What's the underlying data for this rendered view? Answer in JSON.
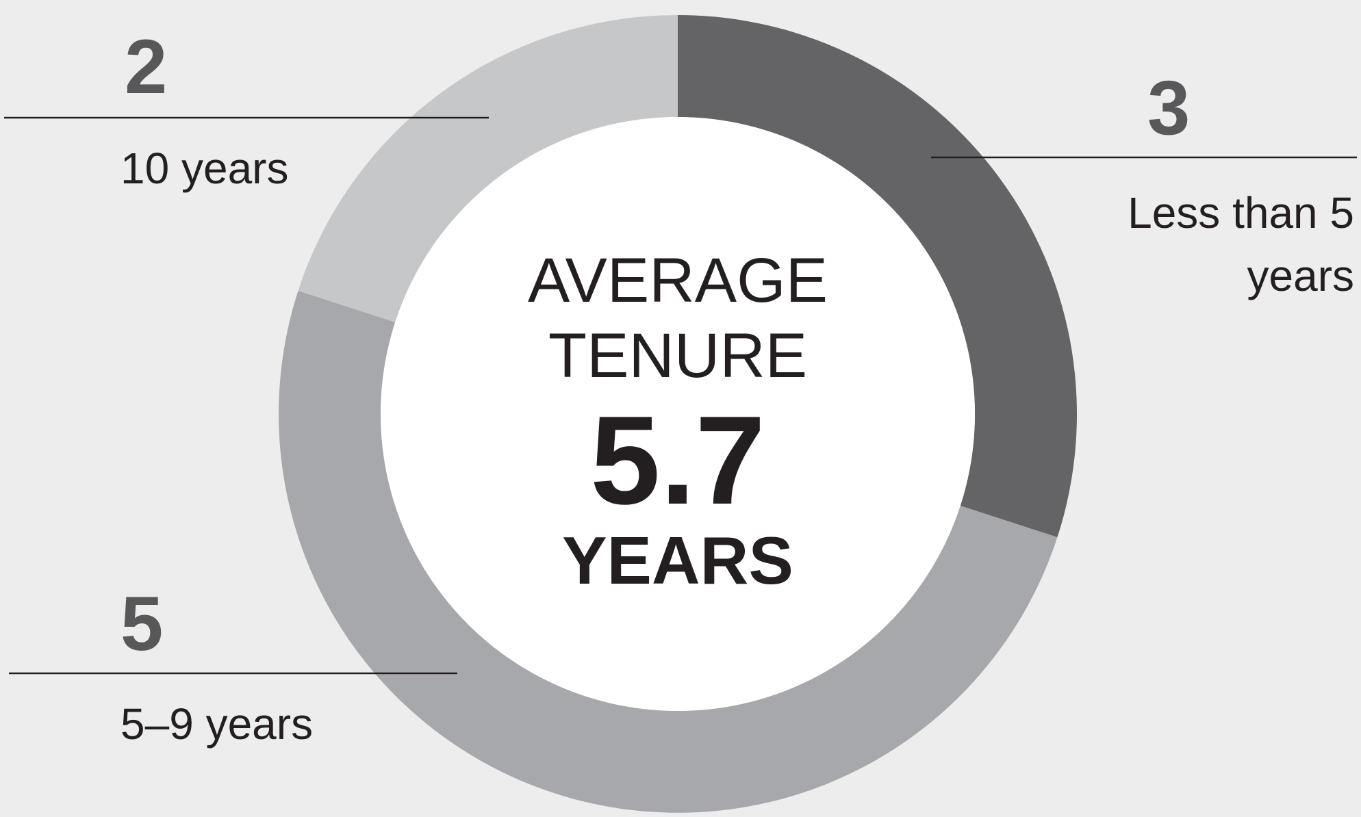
{
  "chart_data": {
    "type": "donut",
    "center_title": "AVERAGE TENURE",
    "center_value": 5.7,
    "center_unit": "YEARS",
    "categories": [
      "Less than 5 years",
      "5–9 years",
      "10 years"
    ],
    "values": [
      3,
      5,
      2
    ],
    "colors": [
      "#646466",
      "#a7a8ab",
      "#c6c7c9"
    ]
  }
}
